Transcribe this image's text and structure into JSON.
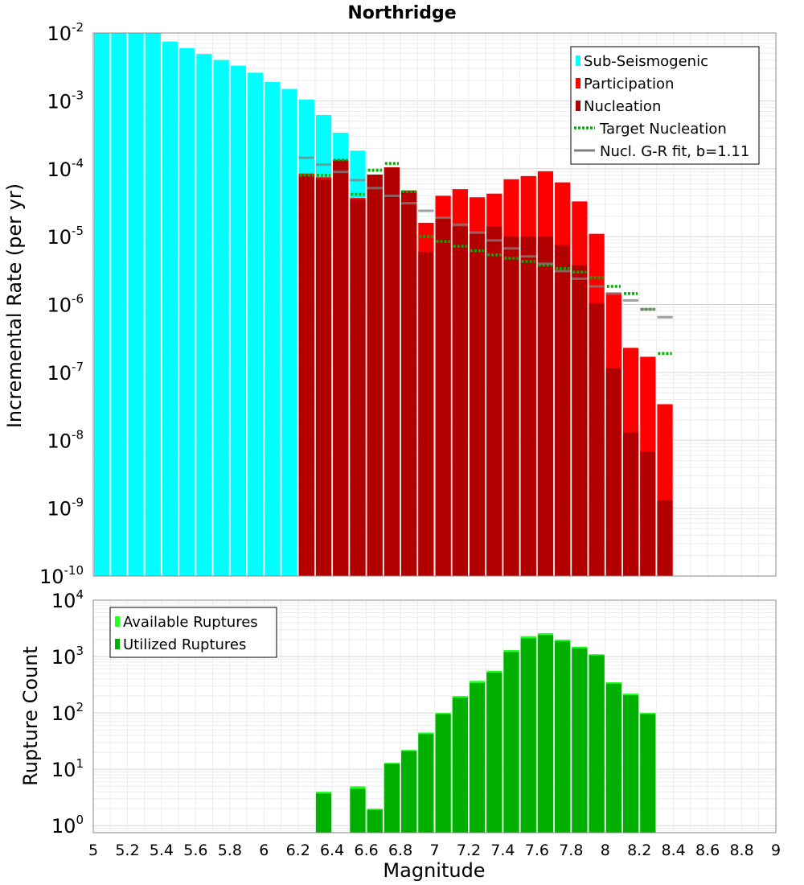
{
  "chart_data": [
    {
      "type": "bar",
      "title": "Northridge",
      "xlabel": "",
      "ylabel": "Incremental Rate (per yr)",
      "yscale": "log",
      "xlim": [
        5,
        9
      ],
      "ylim": [
        1e-10,
        0.01
      ],
      "bin_width": 0.1,
      "y_ticks": [
        {
          "base": "10",
          "exp": "-10"
        },
        {
          "base": "10",
          "exp": "-9"
        },
        {
          "base": "10",
          "exp": "-8"
        },
        {
          "base": "10",
          "exp": "-7"
        },
        {
          "base": "10",
          "exp": "-6"
        },
        {
          "base": "10",
          "exp": "-5"
        },
        {
          "base": "10",
          "exp": "-4"
        },
        {
          "base": "10",
          "exp": "-3"
        },
        {
          "base": "10",
          "exp": "-2"
        }
      ],
      "legend_position": "top-right",
      "legend": [
        {
          "label": "Sub-Seismogenic",
          "color": "#00ffff",
          "style": "box"
        },
        {
          "label": "Participation",
          "color": "#ff0000",
          "style": "box"
        },
        {
          "label": "Nucleation",
          "color": "#b20000",
          "style": "box"
        },
        {
          "label": "Target Nucleation",
          "color": "#00b000",
          "style": "dotted"
        },
        {
          "label": "Nucl. G-R fit, b=1.11",
          "color": "#808080",
          "style": "line"
        }
      ],
      "series": [
        {
          "name": "Sub-Seismogenic",
          "color": "#00ffff",
          "x": [
            5.05,
            5.15,
            5.25,
            5.35,
            5.45,
            5.55,
            5.65,
            5.75,
            5.85,
            5.95,
            6.05,
            6.15,
            6.25,
            6.35,
            6.45,
            6.55
          ],
          "values": [
            0.01,
            0.01,
            0.01,
            0.01,
            0.0075,
            0.006,
            0.0049,
            0.004,
            0.0033,
            0.0026,
            0.0019,
            0.0015,
            0.00105,
            0.00062,
            0.00034,
            0.000185
          ]
        },
        {
          "name": "Participation",
          "color": "#ff0000",
          "x": [
            6.25,
            6.35,
            6.45,
            6.55,
            6.65,
            6.75,
            6.85,
            6.95,
            7.05,
            7.15,
            7.25,
            7.35,
            7.45,
            7.55,
            7.65,
            7.75,
            7.85,
            7.95,
            8.05,
            8.15,
            8.25,
            8.35
          ],
          "values": [
            8.5e-05,
            7.5e-05,
            0.000135,
            3.7e-05,
            8.2e-05,
            0.000105,
            4.8e-05,
            1.6e-05,
            4e-05,
            5e-05,
            3.8e-05,
            4.3e-05,
            7e-05,
            7.8e-05,
            9.2e-05,
            6.3e-05,
            3.3e-05,
            1.1e-05,
            1.5e-06,
            2.3e-07,
            1.7e-07,
            3.4e-08
          ]
        },
        {
          "name": "Nucleation",
          "color": "#b20000",
          "x": [
            6.25,
            6.35,
            6.45,
            6.55,
            6.65,
            6.75,
            6.85,
            6.95,
            7.05,
            7.15,
            7.25,
            7.35,
            7.45,
            7.55,
            7.65,
            7.75,
            7.85,
            7.95,
            8.05,
            8.15,
            8.25,
            8.35
          ],
          "values": [
            8e-05,
            7e-05,
            0.00013,
            3.5e-05,
            8.2e-05,
            0.000105,
            4.6e-05,
            6e-06,
            1.9e-05,
            1.4e-05,
            1.1e-05,
            1.4e-05,
            1e-05,
            1e-05,
            1e-05,
            7.5e-06,
            3.8e-06,
            1.05e-06,
            1.15e-07,
            1.3e-08,
            6.8e-09,
            1.3e-09
          ]
        },
        {
          "name": "Target Nucleation",
          "color": "#00b000",
          "style": "dotted",
          "x": [
            6.25,
            6.35,
            6.45,
            6.55,
            6.65,
            6.75,
            6.85,
            6.95,
            7.05,
            7.15,
            7.25,
            7.35,
            7.45,
            7.55,
            7.65,
            7.75,
            7.85,
            7.95,
            8.05,
            8.15,
            8.25,
            8.35
          ],
          "values": [
            8e-05,
            8e-05,
            0.000135,
            4.2e-05,
            9.5e-05,
            0.00012,
            4.6e-05,
            1e-05,
            8.5e-06,
            7.2e-06,
            6.2e-06,
            5.4e-06,
            4.8e-06,
            4.3e-06,
            3.8e-06,
            3.4e-06,
            3e-06,
            2.5e-06,
            1.85e-06,
            1.45e-06,
            8.5e-07,
            1.9e-07
          ]
        },
        {
          "name": "Nucl. G-R fit, b=1.11",
          "color": "#808080",
          "style": "line",
          "x": [
            6.25,
            6.35,
            6.45,
            6.55,
            6.65,
            6.75,
            6.85,
            6.95,
            7.05,
            7.15,
            7.25,
            7.35,
            7.45,
            7.55,
            7.65,
            7.75,
            7.85,
            7.95,
            8.05,
            8.15,
            8.25,
            8.35
          ],
          "values": [
            0.000145,
            0.000115,
            9e-05,
            6.8e-05,
            5.2e-05,
            4e-05,
            3.1e-05,
            2.4e-05,
            1.9e-05,
            1.5e-05,
            1.15e-05,
            8.8e-06,
            6.7e-06,
            5.1e-06,
            4e-06,
            3.1e-06,
            2.4e-06,
            1.85e-06,
            1.45e-06,
            1.15e-06,
            8.5e-07,
            6.5e-07
          ]
        }
      ]
    },
    {
      "type": "bar",
      "title": "",
      "xlabel": "Magnitude",
      "ylabel": "Rupture Count",
      "yscale": "log",
      "xlim": [
        5,
        9
      ],
      "ylim": [
        0.75,
        10000
      ],
      "bin_width": 0.1,
      "x_ticks": [
        "5",
        "5.2",
        "5.4",
        "5.6",
        "5.8",
        "6",
        "6.2",
        "6.4",
        "6.6",
        "6.8",
        "7",
        "7.2",
        "7.4",
        "7.6",
        "7.8",
        "8",
        "8.2",
        "8.4",
        "8.6",
        "8.8",
        "9"
      ],
      "y_ticks": [
        {
          "base": "10",
          "exp": "0"
        },
        {
          "base": "10",
          "exp": "1"
        },
        {
          "base": "10",
          "exp": "2"
        },
        {
          "base": "10",
          "exp": "3"
        },
        {
          "base": "10",
          "exp": "4"
        }
      ],
      "legend_position": "top-left",
      "legend": [
        {
          "label": "Available Ruptures",
          "color": "#22ff22",
          "style": "box"
        },
        {
          "label": "Utilized Ruptures",
          "color": "#00b000",
          "style": "box"
        }
      ],
      "series": [
        {
          "name": "Available Ruptures",
          "color": "#22ff22",
          "x": [
            6.35,
            6.55,
            6.65,
            6.75,
            6.85,
            6.95,
            7.05,
            7.15,
            7.25,
            7.35,
            7.45,
            7.55,
            7.65,
            7.75,
            7.85,
            7.95,
            8.05,
            8.15,
            8.25
          ],
          "values": [
            4,
            5,
            2,
            13,
            22,
            45,
            100,
            200,
            370,
            560,
            1300,
            2300,
            2600,
            2000,
            1500,
            1100,
            350,
            220,
            100
          ]
        },
        {
          "name": "Utilized Ruptures",
          "color": "#00b000",
          "x": [
            6.35,
            6.55,
            6.65,
            6.75,
            6.85,
            6.95,
            7.05,
            7.15,
            7.25,
            7.35,
            7.45,
            7.55,
            7.65,
            7.75,
            7.85,
            7.95,
            8.05,
            8.15,
            8.25
          ],
          "values": [
            3.7,
            4.5,
            1.9,
            12.5,
            21,
            42,
            95,
            185,
            340,
            520,
            1200,
            2100,
            2400,
            1850,
            1400,
            1050,
            330,
            205,
            95
          ]
        }
      ]
    }
  ]
}
